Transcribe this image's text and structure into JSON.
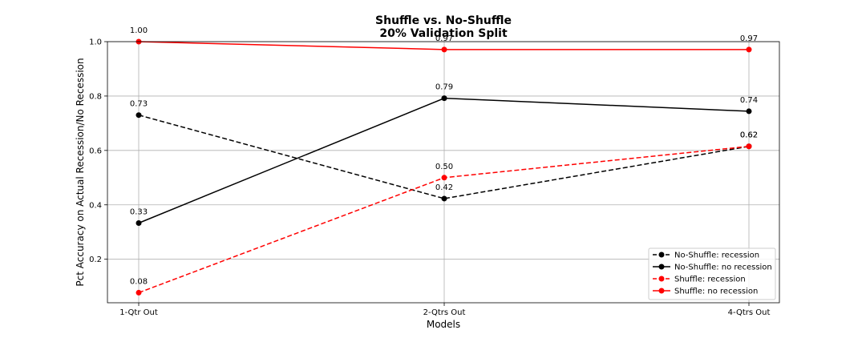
{
  "chart_data": {
    "type": "line",
    "title": [
      "Shuffle vs. No-Shuffle",
      "20% Validation Split"
    ],
    "xlabel": "Models",
    "ylabel": "Pct Accuracy on Actual Recession/No Recession",
    "categories": [
      "1-Qtr Out",
      "2-Qtrs Out",
      "4-Qtrs Out"
    ],
    "ylim": [
      0.04,
      1.0
    ],
    "yticks": [
      0.2,
      0.4,
      0.6,
      0.8,
      1.0
    ],
    "ytick_labels": [
      "0.2",
      "0.4",
      "0.6",
      "0.8",
      "1.0"
    ],
    "grid": true,
    "legend_position": "lower right",
    "series": [
      {
        "name": "No-Shuffle: recession",
        "color": "#000000",
        "linestyle": "dashed",
        "marker": "circle",
        "values": [
          0.73,
          0.423,
          0.615
        ],
        "labels": [
          "0.73",
          "0.42",
          "0.62"
        ]
      },
      {
        "name": "No-Shuffle: no recession",
        "color": "#000000",
        "linestyle": "solid",
        "marker": "circle",
        "values": [
          0.333,
          0.792,
          0.744
        ],
        "labels": [
          "0.33",
          "0.79",
          "0.74"
        ]
      },
      {
        "name": "Shuffle: recession",
        "color": "#ff0000",
        "linestyle": "dashed",
        "marker": "circle",
        "values": [
          0.077,
          0.5,
          0.615
        ],
        "labels": [
          "0.08",
          "0.50",
          "0.62"
        ]
      },
      {
        "name": "Shuffle: no recession",
        "color": "#ff0000",
        "linestyle": "solid",
        "marker": "circle",
        "values": [
          1.0,
          0.971,
          0.971
        ],
        "labels": [
          "1.00",
          "0.97",
          "0.97"
        ]
      }
    ]
  }
}
